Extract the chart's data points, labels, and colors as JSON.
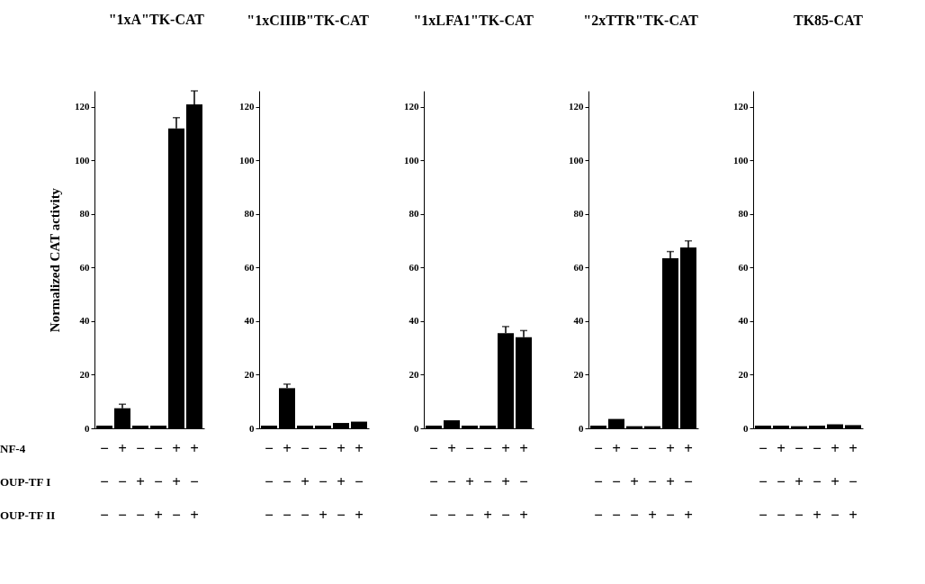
{
  "chart_data": [
    {
      "type": "bar",
      "title": "\"1xA\"TK-CAT",
      "ylabel": "Normalized CAT activity",
      "annotations": [
        "NF-4",
        "OUP-TF I",
        "OUP-TF II"
      ],
      "categories": [
        "−\n−\n−",
        "+\n−\n−",
        "−\n+\n−",
        "−\n−\n+",
        "+\n+\n−",
        "+\n−\n+"
      ],
      "values": [
        1,
        7.5,
        1,
        1,
        112,
        121
      ],
      "errors": [
        null,
        [
          7.5,
          9
        ],
        null,
        null,
        [
          112,
          116
        ],
        [
          121,
          126
        ]
      ],
      "color": "#000000",
      "ylim": [
        0,
        126
      ],
      "yticks": [
        0,
        20,
        40,
        60,
        80,
        100,
        120
      ],
      "grid": false
    },
    {
      "type": "bar",
      "title": "\"1xCIIIB\"TK-CAT",
      "categories": [
        "−\n−\n−",
        "+\n−\n−",
        "−\n+\n−",
        "−\n−\n+",
        "+\n+\n−",
        "+\n−\n+"
      ],
      "values": [
        1,
        15,
        1,
        1,
        2,
        2.5
      ],
      "errors": [
        null,
        [
          15,
          16.5
        ],
        null,
        null,
        null,
        null
      ],
      "color": "#000000",
      "ylim": [
        0,
        126
      ],
      "yticks": [
        0,
        20,
        40,
        60,
        80,
        100,
        120
      ],
      "grid": false
    },
    {
      "type": "bar",
      "title": "\"1xLFA1\"TK-CAT",
      "categories": [
        "−\n−\n−",
        "+\n−\n−",
        "−\n+\n−",
        "−\n−\n+",
        "+\n+\n−",
        "+\n−\n+"
      ],
      "values": [
        1,
        3,
        1,
        1,
        35.5,
        34
      ],
      "errors": [
        null,
        null,
        null,
        null,
        [
          35.5,
          38
        ],
        [
          34,
          36.5
        ]
      ],
      "color": "#000000",
      "ylim": [
        0,
        126
      ],
      "yticks": [
        0,
        20,
        40,
        60,
        80,
        100,
        120
      ],
      "grid": false
    },
    {
      "type": "bar",
      "title": "\"2xTTR\"TK-CAT",
      "categories": [
        "−\n−\n−",
        "+\n−\n−",
        "−\n+\n−",
        "−\n−\n+",
        "+\n+\n−",
        "+\n−\n+"
      ],
      "values": [
        1,
        3.5,
        0.8,
        0.8,
        63.5,
        67.5
      ],
      "errors": [
        null,
        null,
        null,
        null,
        [
          63.5,
          66
        ],
        [
          67.5,
          70
        ]
      ],
      "color": "#000000",
      "ylim": [
        0,
        126
      ],
      "yticks": [
        0,
        20,
        40,
        60,
        80,
        100,
        120
      ],
      "grid": false
    },
    {
      "type": "bar",
      "title": "TK85-CAT",
      "categories": [
        "−\n−\n−",
        "+\n−\n−",
        "−\n+\n−",
        "−\n−\n+",
        "+\n+\n−",
        "+\n−\n+"
      ],
      "values": [
        1,
        1,
        0.8,
        1,
        1.5,
        1.2
      ],
      "color": "#000000",
      "ylim": [
        0,
        126
      ],
      "yticks": [
        0,
        20,
        40,
        60,
        80,
        100,
        120
      ],
      "grid": false
    }
  ]
}
